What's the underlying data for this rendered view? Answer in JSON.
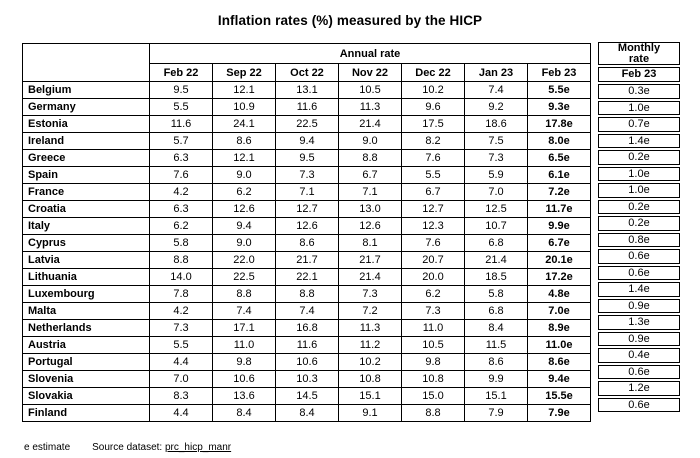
{
  "chart_data": {
    "type": "table",
    "title": "Inflation rates (%) measured by the HICP",
    "group_header": "Annual rate",
    "monthly_group_header": "Monthly\nrate",
    "annual_columns": [
      "Feb 22",
      "Sep 22",
      "Oct 22",
      "Nov 22",
      "Dec 22",
      "Jan 23",
      "Feb 23"
    ],
    "monthly_column": "Feb 23",
    "value_note": "e = estimate; values with e suffix are flash estimates shown in bold in the annual Feb 23 column",
    "rows": [
      {
        "country": "Belgium",
        "annual": [
          "9.5",
          "12.1",
          "13.1",
          "10.5",
          "10.2",
          "7.4",
          "5.5e"
        ],
        "monthly": "0.3e"
      },
      {
        "country": "Germany",
        "annual": [
          "5.5",
          "10.9",
          "11.6",
          "11.3",
          "9.6",
          "9.2",
          "9.3e"
        ],
        "monthly": "1.0e"
      },
      {
        "country": "Estonia",
        "annual": [
          "11.6",
          "24.1",
          "22.5",
          "21.4",
          "17.5",
          "18.6",
          "17.8e"
        ],
        "monthly": "0.7e"
      },
      {
        "country": "Ireland",
        "annual": [
          "5.7",
          "8.6",
          "9.4",
          "9.0",
          "8.2",
          "7.5",
          "8.0e"
        ],
        "monthly": "1.4e"
      },
      {
        "country": "Greece",
        "annual": [
          "6.3",
          "12.1",
          "9.5",
          "8.8",
          "7.6",
          "7.3",
          "6.5e"
        ],
        "monthly": "0.2e"
      },
      {
        "country": "Spain",
        "annual": [
          "7.6",
          "9.0",
          "7.3",
          "6.7",
          "5.5",
          "5.9",
          "6.1e"
        ],
        "monthly": "1.0e"
      },
      {
        "country": "France",
        "annual": [
          "4.2",
          "6.2",
          "7.1",
          "7.1",
          "6.7",
          "7.0",
          "7.2e"
        ],
        "monthly": "1.0e"
      },
      {
        "country": "Croatia",
        "annual": [
          "6.3",
          "12.6",
          "12.7",
          "13.0",
          "12.7",
          "12.5",
          "11.7e"
        ],
        "monthly": "0.2e"
      },
      {
        "country": "Italy",
        "annual": [
          "6.2",
          "9.4",
          "12.6",
          "12.6",
          "12.3",
          "10.7",
          "9.9e"
        ],
        "monthly": "0.2e"
      },
      {
        "country": "Cyprus",
        "annual": [
          "5.8",
          "9.0",
          "8.6",
          "8.1",
          "7.6",
          "6.8",
          "6.7e"
        ],
        "monthly": "0.8e"
      },
      {
        "country": "Latvia",
        "annual": [
          "8.8",
          "22.0",
          "21.7",
          "21.7",
          "20.7",
          "21.4",
          "20.1e"
        ],
        "monthly": "0.6e"
      },
      {
        "country": "Lithuania",
        "annual": [
          "14.0",
          "22.5",
          "22.1",
          "21.4",
          "20.0",
          "18.5",
          "17.2e"
        ],
        "monthly": "0.6e"
      },
      {
        "country": "Luxembourg",
        "annual": [
          "7.8",
          "8.8",
          "8.8",
          "7.3",
          "6.2",
          "5.8",
          "4.8e"
        ],
        "monthly": "1.4e"
      },
      {
        "country": "Malta",
        "annual": [
          "4.2",
          "7.4",
          "7.4",
          "7.2",
          "7.3",
          "6.8",
          "7.0e"
        ],
        "monthly": "0.9e"
      },
      {
        "country": "Netherlands",
        "annual": [
          "7.3",
          "17.1",
          "16.8",
          "11.3",
          "11.0",
          "8.4",
          "8.9e"
        ],
        "monthly": "1.3e"
      },
      {
        "country": "Austria",
        "annual": [
          "5.5",
          "11.0",
          "11.6",
          "11.2",
          "10.5",
          "11.5",
          "11.0e"
        ],
        "monthly": "0.9e"
      },
      {
        "country": "Portugal",
        "annual": [
          "4.4",
          "9.8",
          "10.6",
          "10.2",
          "9.8",
          "8.6",
          "8.6e"
        ],
        "monthly": "0.4e"
      },
      {
        "country": "Slovenia",
        "annual": [
          "7.0",
          "10.6",
          "10.3",
          "10.8",
          "10.8",
          "9.9",
          "9.4e"
        ],
        "monthly": "0.6e"
      },
      {
        "country": "Slovakia",
        "annual": [
          "8.3",
          "13.6",
          "14.5",
          "15.1",
          "15.0",
          "15.1",
          "15.5e"
        ],
        "monthly": "1.2e"
      },
      {
        "country": "Finland",
        "annual": [
          "4.4",
          "8.4",
          "8.4",
          "9.1",
          "8.8",
          "7.9",
          "7.9e"
        ],
        "monthly": "0.6e"
      }
    ]
  },
  "footer": {
    "estimate_note": "e estimate",
    "source_label": "Source dataset: ",
    "source_link": "prc_hicp_manr"
  }
}
